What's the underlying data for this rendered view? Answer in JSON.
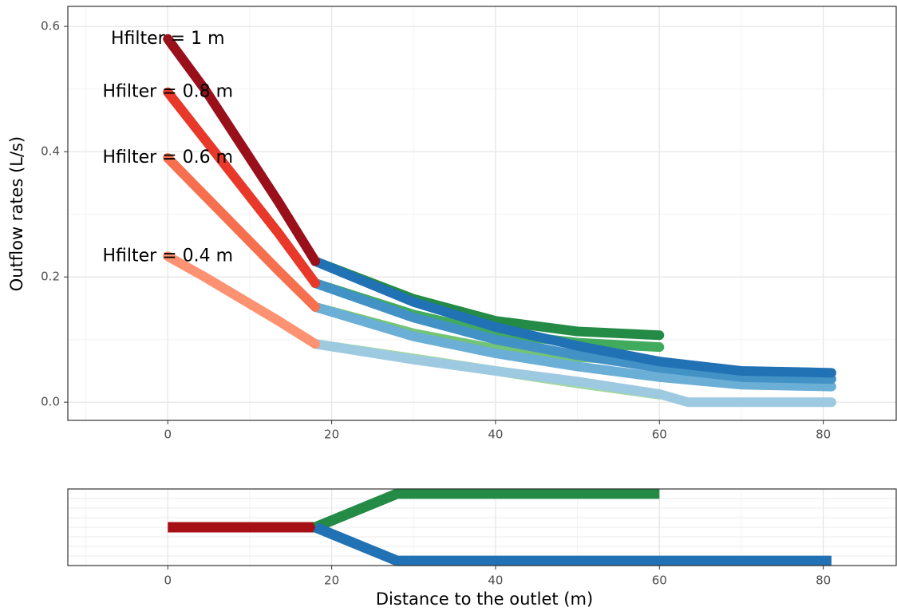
{
  "chart_data": [
    {
      "type": "line",
      "ylabel": "Outflow rates (L/s)",
      "xlim": [
        -12.2,
        88.9
      ],
      "xticks": [
        0,
        20,
        40,
        60,
        80
      ],
      "ylim": [
        -0.029,
        0.632
      ],
      "yticks": [
        {
          "value": 0,
          "label": "0.0"
        },
        0.2,
        0.4,
        0.6
      ],
      "grid": true,
      "series": [
        {
          "color": "#a1d99b",
          "x": [
            18,
            30,
            40,
            50,
            60
          ],
          "values": [
            0.093,
            0.07,
            0.05,
            0.03,
            0.012
          ]
        },
        {
          "color": "#74c476",
          "x": [
            18,
            30,
            40,
            50,
            60
          ],
          "values": [
            0.152,
            0.11,
            0.085,
            0.072,
            0.065
          ]
        },
        {
          "color": "#41ab5d",
          "x": [
            18,
            30,
            40,
            50,
            60
          ],
          "values": [
            0.19,
            0.14,
            0.11,
            0.095,
            0.088
          ]
        },
        {
          "color": "#238b45",
          "x": [
            18,
            30,
            40,
            50,
            60
          ],
          "values": [
            0.225,
            0.165,
            0.13,
            0.113,
            0.107
          ]
        },
        {
          "color": "#9ecae1",
          "x": [
            18,
            30,
            40,
            50,
            60,
            63.5,
            81
          ],
          "values": [
            0.093,
            0.068,
            0.05,
            0.033,
            0.013,
            0,
            0
          ]
        },
        {
          "color": "#6baed6",
          "x": [
            18,
            30,
            40,
            50,
            60,
            70,
            81
          ],
          "values": [
            0.152,
            0.105,
            0.078,
            0.057,
            0.04,
            0.028,
            0.025
          ]
        },
        {
          "color": "#4292c6",
          "x": [
            18,
            30,
            40,
            50,
            60,
            70,
            81
          ],
          "values": [
            0.19,
            0.135,
            0.1,
            0.075,
            0.055,
            0.04,
            0.037
          ]
        },
        {
          "color": "#2171b5",
          "x": [
            18,
            30,
            40,
            50,
            60,
            70,
            81
          ],
          "values": [
            0.225,
            0.16,
            0.12,
            0.09,
            0.065,
            0.05,
            0.047
          ]
        },
        {
          "name": "Hfilter = 0.4 m",
          "color": "#fc9272",
          "x": [
            0,
            4.5,
            9,
            13.5,
            18
          ],
          "values": [
            0.233,
            0.2,
            0.165,
            0.13,
            0.093
          ]
        },
        {
          "name": "Hfilter = 0.6 m",
          "color": "#f6704f",
          "x": [
            0,
            4.5,
            9,
            13.5,
            18
          ],
          "values": [
            0.39,
            0.33,
            0.27,
            0.21,
            0.152
          ]
        },
        {
          "name": "Hfilter = 0.8 m",
          "color": "#e8382a",
          "x": [
            0,
            4.5,
            9,
            13.5,
            18
          ],
          "values": [
            0.495,
            0.42,
            0.345,
            0.27,
            0.19
          ]
        },
        {
          "name": "Hfilter = 1 m",
          "color": "#99101b",
          "x": [
            0,
            4.5,
            9,
            13.5,
            18
          ],
          "values": [
            0.58,
            0.5,
            0.41,
            0.32,
            0.225
          ]
        }
      ]
    },
    {
      "type": "line",
      "xlabel": "Distance to the outlet (m)",
      "xlim": [
        -12.2,
        88.9
      ],
      "xticks": [
        0,
        20,
        40,
        60,
        80
      ],
      "ylim": [
        -1.14,
        1.14
      ],
      "grid": true,
      "series": [
        {
          "color": "#a50f15",
          "x": [
            0,
            18
          ],
          "values": [
            0,
            0
          ]
        },
        {
          "color": "#238b45",
          "x": [
            18,
            28,
            60
          ],
          "values": [
            0,
            1,
            1
          ]
        },
        {
          "color": "#2171b5",
          "x": [
            18,
            28,
            81
          ],
          "values": [
            0,
            -1,
            -1
          ]
        }
      ]
    }
  ]
}
